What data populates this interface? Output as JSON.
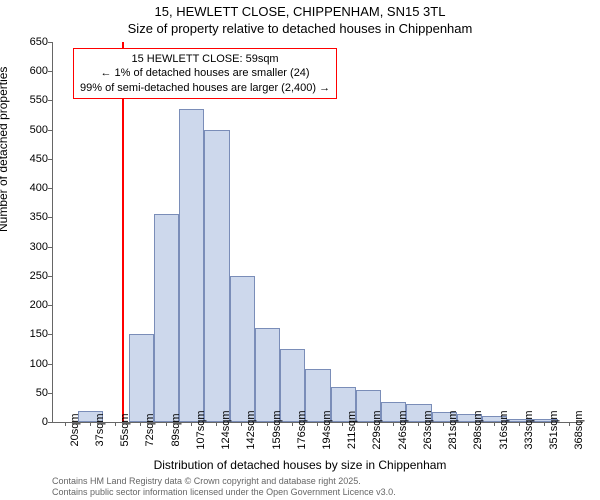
{
  "title_main": "15, HEWLETT CLOSE, CHIPPENHAM, SN15 3TL",
  "title_sub": "Size of property relative to detached houses in Chippenham",
  "ylabel": "Number of detached properties",
  "xlabel": "Distribution of detached houses by size in Chippenham",
  "chart": {
    "type": "histogram",
    "ylim": [
      0,
      650
    ],
    "ytick_step": 50,
    "x_categories": [
      "20sqm",
      "37sqm",
      "55sqm",
      "72sqm",
      "89sqm",
      "107sqm",
      "124sqm",
      "142sqm",
      "159sqm",
      "176sqm",
      "194sqm",
      "211sqm",
      "229sqm",
      "246sqm",
      "263sqm",
      "281sqm",
      "298sqm",
      "316sqm",
      "333sqm",
      "351sqm",
      "368sqm"
    ],
    "bar_values": [
      0,
      18,
      0,
      150,
      355,
      535,
      500,
      250,
      160,
      125,
      90,
      60,
      55,
      35,
      30,
      17,
      14,
      10,
      6,
      6,
      0
    ],
    "bar_fill": "#cdd8ec",
    "bar_stroke": "#7a8db8",
    "background": "#ffffff",
    "axis_color": "#666666",
    "text_color": "#000000",
    "marker_value_sqm": 59,
    "marker_color": "#ff0000",
    "annotation": {
      "line1": "15 HEWLETT CLOSE: 59sqm",
      "line2": "← 1% of detached houses are smaller (24)",
      "line3": "99% of semi-detached houses are larger (2,400) →",
      "border_color": "#ff0000",
      "bg_color": "#ffffff",
      "fontsize": 11
    },
    "tick_fontsize": 11,
    "label_fontsize": 12,
    "title_fontsize": 13
  },
  "footer_line1": "Contains HM Land Registry data © Crown copyright and database right 2025.",
  "footer_line2": "Contains public sector information licensed under the Open Government Licence v3.0."
}
